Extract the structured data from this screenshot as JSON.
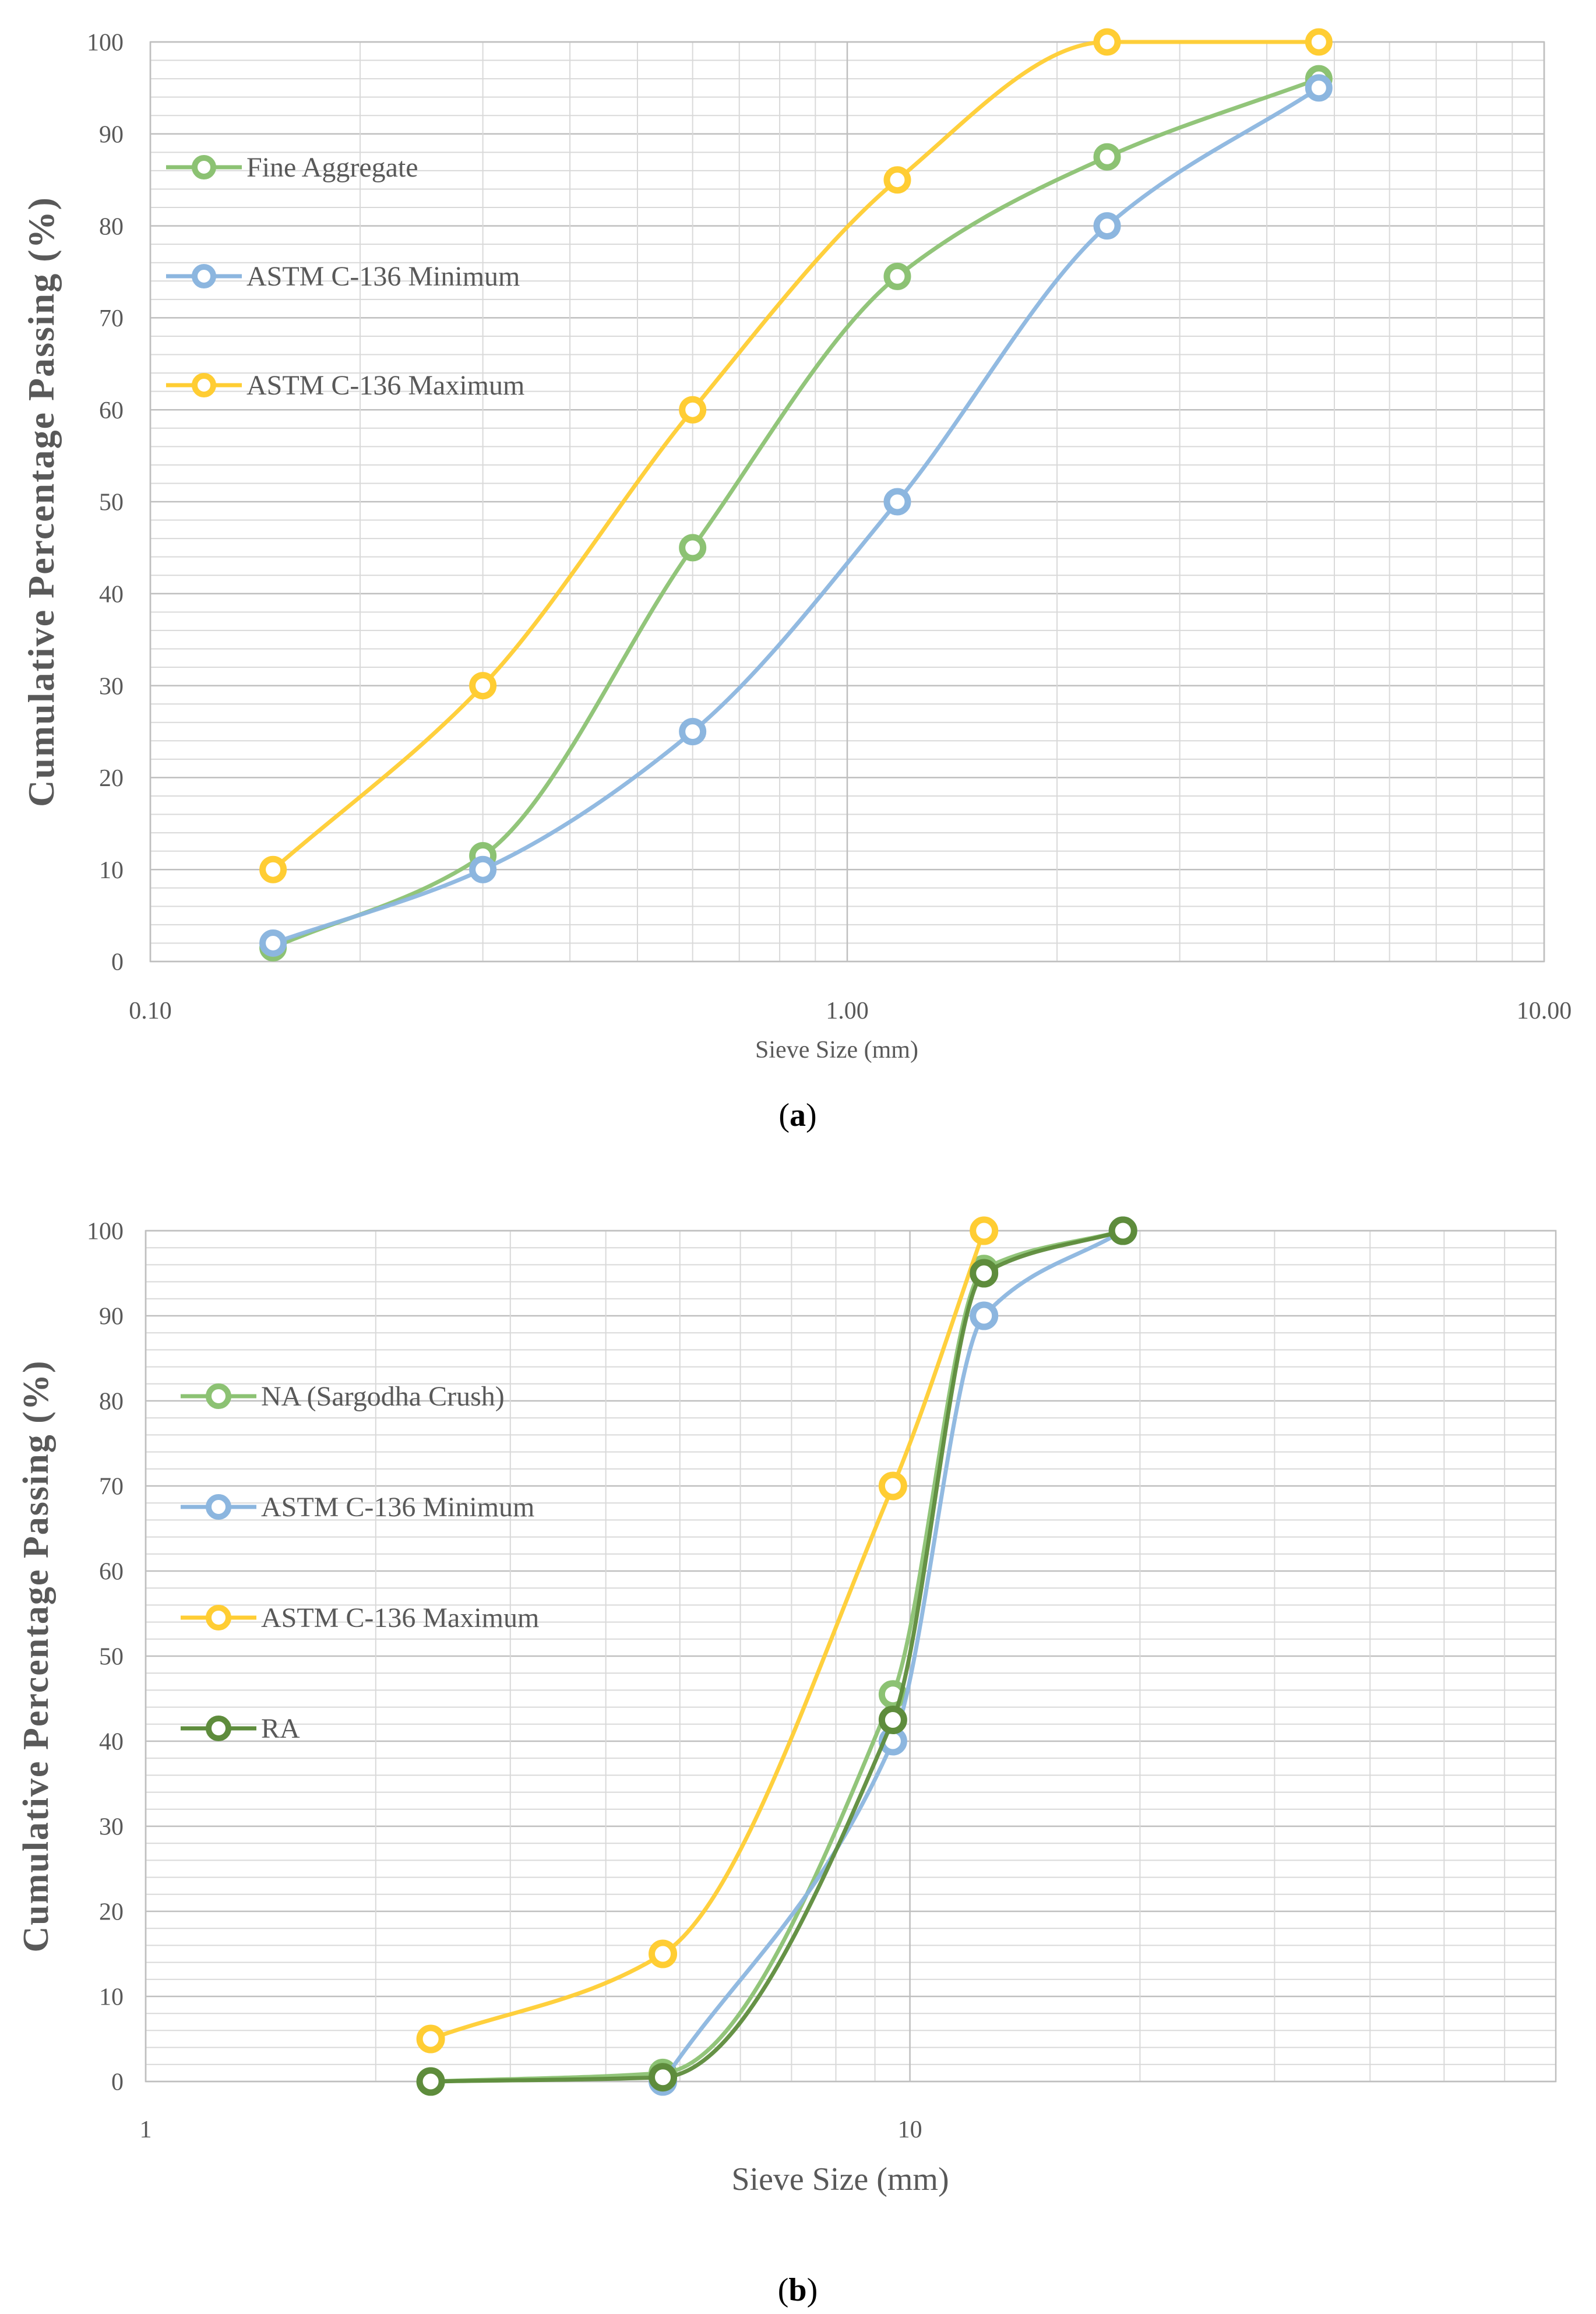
{
  "colors": {
    "fine_green": "#8CC273",
    "blue": "#8CB6DF",
    "yellow": "#FFCD33",
    "ra_green": "#5E8C3C",
    "grid": "#d9d9d9",
    "axis_text": "#595959"
  },
  "captions": {
    "a_open": "(",
    "a_letter": "a",
    "a_close": ")",
    "b_open": "(",
    "b_letter": "b",
    "b_close": ")"
  },
  "chart_data": [
    {
      "id": "a",
      "type": "line",
      "xscale": "log",
      "xlim": [
        0.1,
        10
      ],
      "ylim": [
        0,
        100
      ],
      "ytick_step": 10,
      "minor_grid_step": 2,
      "xticks": [
        0.1,
        1,
        10
      ],
      "xtick_labels": [
        "0.10",
        "1.00",
        "10.00"
      ],
      "ytick_labels": [
        "0",
        "10",
        "20",
        "30",
        "40",
        "50",
        "60",
        "70",
        "80",
        "90",
        "100"
      ],
      "xlabel": "Sieve Size (mm)",
      "ylabel": "Cumulative Percentage Passing (%)",
      "legend_position": "top-left",
      "series": [
        {
          "name": "Fine Aggregate",
          "color": "#8CC273",
          "x": [
            0.15,
            0.3,
            0.6,
            1.18,
            2.36,
            4.75
          ],
          "y": [
            1.5,
            11.5,
            45,
            74.5,
            87.5,
            96
          ]
        },
        {
          "name": "ASTM C-136 Minimum",
          "color": "#8CB6DF",
          "x": [
            0.15,
            0.3,
            0.6,
            1.18,
            2.36,
            4.75
          ],
          "y": [
            2,
            10,
            25,
            50,
            80,
            95
          ]
        },
        {
          "name": "ASTM C-136 Maximum",
          "color": "#FFCD33",
          "x": [
            0.15,
            0.3,
            0.6,
            1.18,
            2.36,
            4.75
          ],
          "y": [
            10,
            30,
            60,
            85,
            100,
            100
          ]
        }
      ]
    },
    {
      "id": "b",
      "type": "line",
      "xscale": "log",
      "xlim": [
        1,
        70
      ],
      "ylim": [
        0,
        100
      ],
      "ytick_step": 10,
      "minor_grid_step": 2,
      "xticks": [
        1,
        10
      ],
      "xtick_labels": [
        "1",
        "10"
      ],
      "ytick_labels": [
        "0",
        "10",
        "20",
        "30",
        "40",
        "50",
        "60",
        "70",
        "80",
        "90",
        "100"
      ],
      "xlabel": "Sieve Size (mm)",
      "ylabel": "Cumulative Percentage Passing (%)",
      "legend_position": "left",
      "series": [
        {
          "name": "NA (Sargodha Crush)",
          "color": "#8CC273",
          "x": [
            2.36,
            4.75,
            9.5,
            12.5,
            19
          ],
          "y": [
            0,
            1,
            45.5,
            95.5,
            100
          ]
        },
        {
          "name": "ASTM C-136 Minimum",
          "color": "#8CB6DF",
          "x": [
            4.75,
            9.5,
            12.5,
            19
          ],
          "y": [
            0,
            40,
            90,
            100
          ]
        },
        {
          "name": "ASTM C-136 Maximum",
          "color": "#FFCD33",
          "x": [
            2.36,
            4.75,
            9.5,
            12.5
          ],
          "y": [
            5,
            15,
            70,
            100
          ]
        },
        {
          "name": "RA",
          "color": "#5E8C3C",
          "x": [
            2.36,
            4.75,
            9.5,
            12.5,
            19
          ],
          "y": [
            0,
            0.5,
            42.5,
            95,
            100
          ]
        }
      ]
    }
  ]
}
